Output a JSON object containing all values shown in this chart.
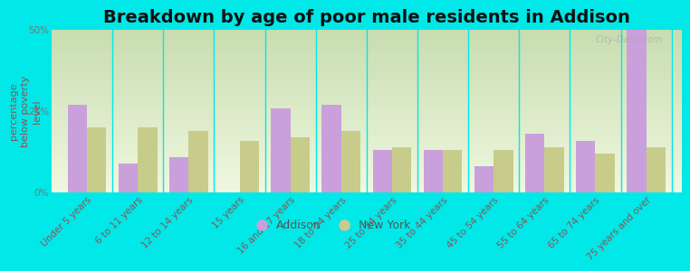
{
  "title": "Breakdown by age of poor male residents in Addison",
  "ylabel": "percentage\nbelow poverty\nlevel",
  "categories": [
    "Under 5 years",
    "6 to 11 years",
    "12 to 14 years",
    "15 years",
    "16 and 17 years",
    "18 to 24 years",
    "25 to 34 years",
    "35 to 44 years",
    "45 to 54 years",
    "55 to 64 years",
    "65 to 74 years",
    "75 years and over"
  ],
  "addison_values": [
    27,
    9,
    11,
    0,
    26,
    27,
    13,
    13,
    8,
    18,
    16,
    50
  ],
  "newyork_values": [
    20,
    20,
    19,
    16,
    17,
    19,
    14,
    13,
    13,
    14,
    12,
    14
  ],
  "addison_color": "#c9a0dc",
  "newyork_color": "#c8cc8a",
  "outer_bg_color": "#00e8e8",
  "plot_bg_top": "#c8ddb0",
  "plot_bg_bottom": "#f0f8e0",
  "ylim": [
    0,
    50
  ],
  "yticks": [
    0,
    25,
    50
  ],
  "ytick_labels": [
    "0%",
    "25%",
    "50%"
  ],
  "bar_width": 0.38,
  "title_fontsize": 14,
  "axis_label_fontsize": 8,
  "tick_fontsize": 7.5,
  "legend_labels": [
    "Addison",
    "New York"
  ],
  "watermark": "City-Data.com"
}
